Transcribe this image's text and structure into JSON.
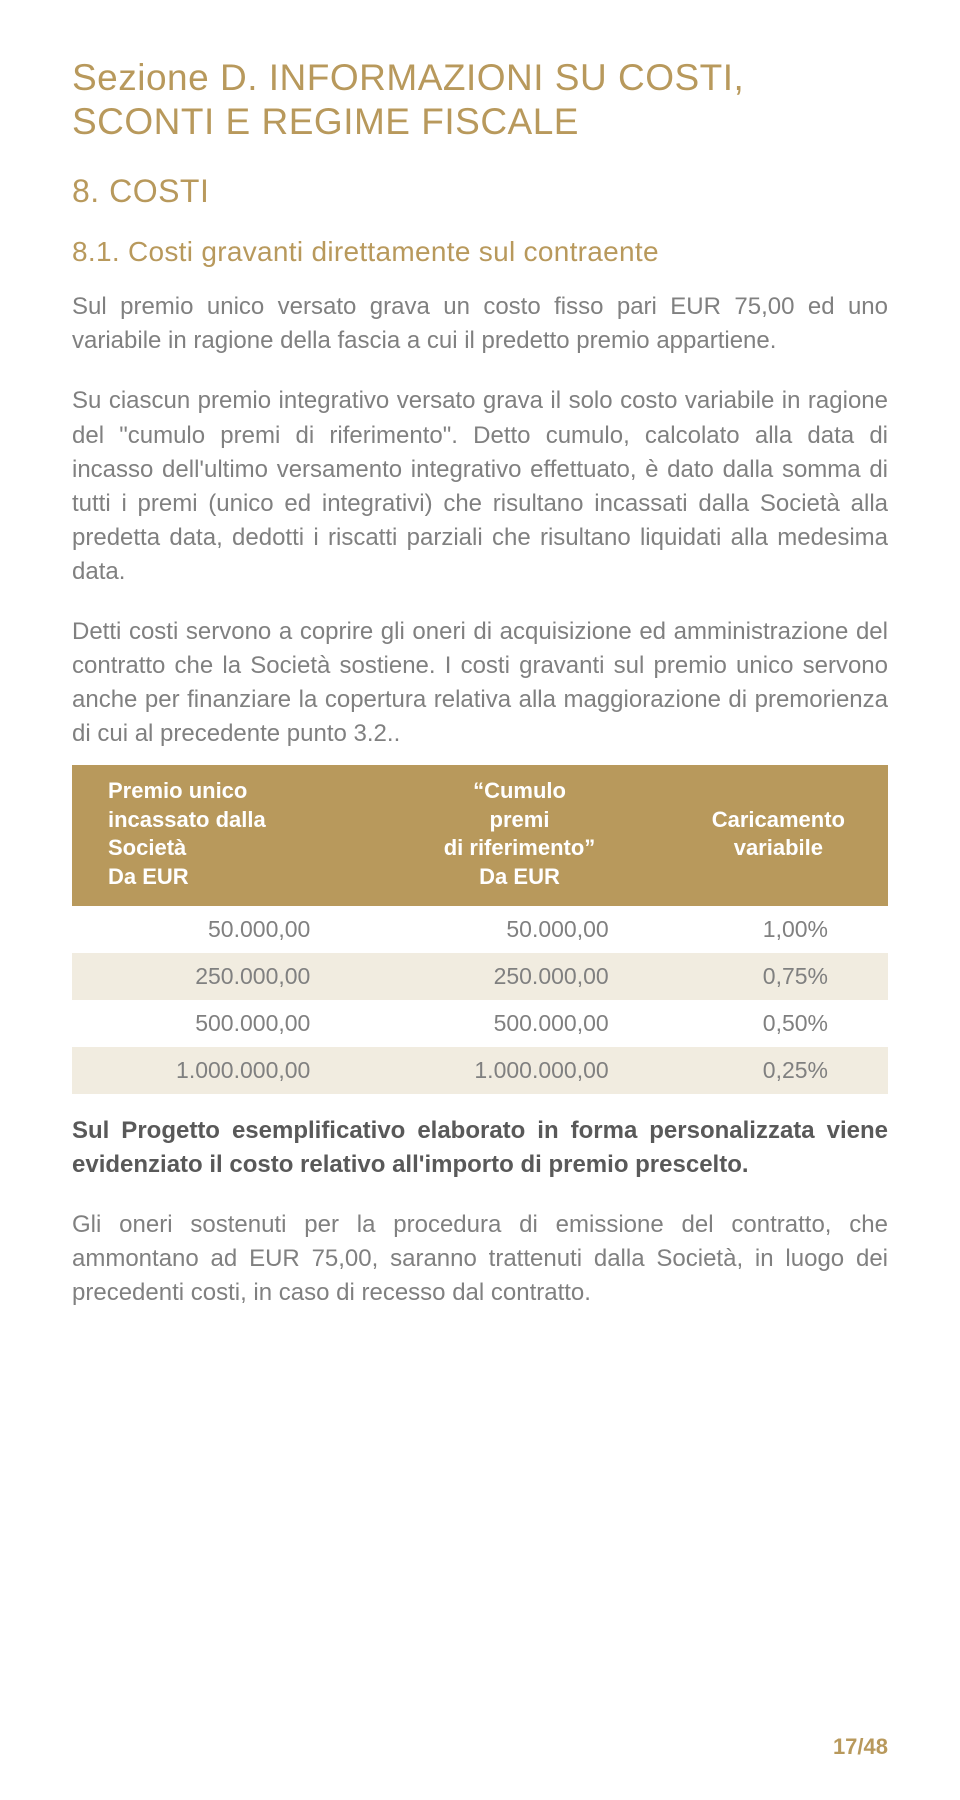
{
  "colors": {
    "accent": "#b8995c",
    "row_alt": "#f1ece0",
    "page_num": "#b8995c",
    "heading": "#b8995c"
  },
  "section_title": "Sezione D. INFORMAZIONI SU COSTI, SCONTI E REGIME FISCALE",
  "h2": "8. COSTI",
  "h3": "8.1. Costi gravanti direttamente sul contraente",
  "p1": "Sul premio unico versato grava un costo fisso pari EUR 75,00 ed uno variabile in ragione della fascia a cui il predetto premio appartiene.",
  "p2": "Su ciascun premio integrativo versato grava il solo costo variabile in ragione del \"cumulo premi di riferimento\". Detto cumulo, calcolato alla data di incasso dell'ultimo versamento integrativo effettuato, è dato dalla somma di tutti i premi (unico ed integrativi) che risultano incassati dalla Società alla predetta data, dedotti i riscatti parziali che risultano liquidati alla medesima data.",
  "p3": "Detti costi servono a coprire gli oneri di acquisizione ed amministrazione del contratto che la Società sostiene. I costi gravanti sul premio unico servono anche per finanziare la copertura relativa alla maggiorazione di premorienza di cui al precedente punto 3.2..",
  "table": {
    "type": "table",
    "header_bg": "#b8995c",
    "header_color": "#ffffff",
    "row_alt_bg": "#f1ece0",
    "columns": [
      "Premio unico incassato dalla Società Da EUR",
      "\"Cumulo premi di riferimento\" Da EUR",
      "Caricamento variabile"
    ],
    "rows": [
      [
        "50.000,00",
        "50.000,00",
        "1,00%"
      ],
      [
        "250.000,00",
        "250.000,00",
        "0,75%"
      ],
      [
        "500.000,00",
        "500.000,00",
        "0,50%"
      ],
      [
        "1.000.000,00",
        "1.000.000,00",
        "0,25%"
      ]
    ]
  },
  "p4_bold": "Sul Progetto esemplificativo elaborato in forma personalizzata viene evidenziato il costo relativo all'importo di premio prescelto.",
  "p5": "Gli oneri sostenuti per la procedura di emissione del contratto, che ammontano ad EUR 75,00, saranno trattenuti dalla Società, in luogo dei precedenti costi, in caso di recesso dal contratto.",
  "page_number": "17/48"
}
